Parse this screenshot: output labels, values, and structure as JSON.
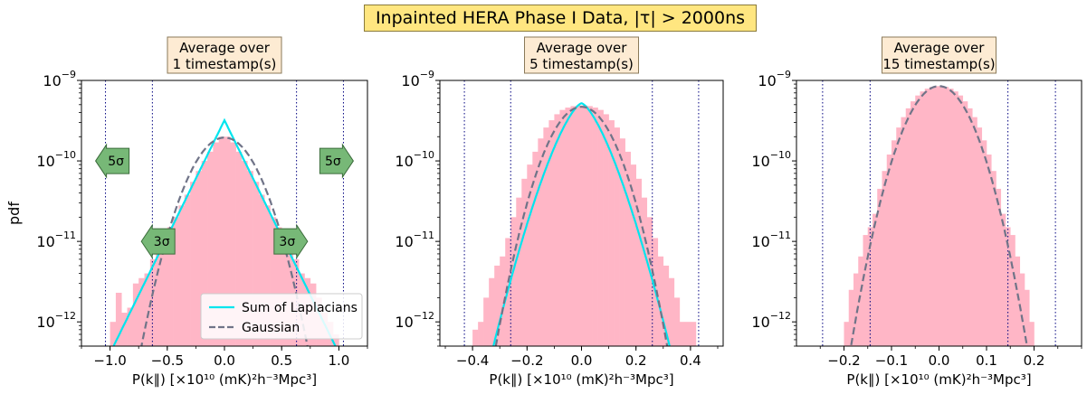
{
  "figure": {
    "title": "Inpainted HERA Phase I Data, |τ| > 2000ns",
    "title_box_color": "#ffe680"
  },
  "colors": {
    "histogram": "#ffb6c6",
    "laplacian": "#00e5ee",
    "gaussian": "#707488",
    "arrow": "#77b877",
    "title_box": "#fdebd3",
    "sigma_line": "#000080"
  },
  "chart_data": [
    {
      "type": "area",
      "title_lines": [
        "Average over",
        "1 timestamp(s)"
      ],
      "xlabel": "P(k∥) [×10¹⁰ (mK)²h⁻³Mpc³]",
      "ylabel": "pdf",
      "yscale": "log",
      "xlim": [
        -1.25,
        1.25
      ],
      "ylim": [
        5e-13,
        1e-09
      ],
      "xticks": [
        -1.0,
        -0.5,
        0.0,
        0.5,
        1.0
      ],
      "xtick_labels": [
        "−1.0",
        "−0.5",
        "0.0",
        "0.5",
        "1.0"
      ],
      "yticks": [
        1e-12,
        1e-11,
        1e-10,
        1e-09
      ],
      "histogram": {
        "bin_edges": [
          -1.0,
          -0.95,
          -0.9,
          -0.85,
          -0.8,
          -0.75,
          -0.7,
          -0.65,
          -0.6,
          -0.55,
          -0.5,
          -0.45,
          -0.4,
          -0.35,
          -0.3,
          -0.25,
          -0.2,
          -0.15,
          -0.1,
          -0.05,
          0.0,
          0.05,
          0.1,
          0.15,
          0.2,
          0.25,
          0.3,
          0.35,
          0.4,
          0.45,
          0.5,
          0.55,
          0.6,
          0.65,
          0.7,
          0.75,
          0.8,
          0.85,
          0.9,
          0.95,
          1.0
        ],
        "values": [
          1e-12,
          2.3e-12,
          1.3e-12,
          1.5e-12,
          3e-12,
          3.5e-12,
          4e-12,
          6e-12,
          8e-12,
          1.1e-11,
          1.5e-11,
          2e-11,
          2.8e-11,
          3.8e-11,
          5.5e-11,
          7.5e-11,
          1e-10,
          1.3e-10,
          1.7e-10,
          2e-10,
          2e-10,
          1.7e-10,
          1.3e-10,
          1e-10,
          7.5e-11,
          5.5e-11,
          3.8e-11,
          2.8e-11,
          2e-11,
          1.5e-11,
          1.1e-11,
          8e-12,
          6e-12,
          4e-12,
          3.5e-12,
          3e-12,
          2e-12,
          1.3e-12,
          1e-12,
          7e-13
        ]
      },
      "laplacian": {
        "peak": 3.2e-10,
        "scale": 0.15
      },
      "gaussian": {
        "peak": 1.95e-10,
        "sigma": 0.21
      },
      "sigma_lines": [
        -1.04,
        -0.63,
        0.63,
        1.04
      ],
      "arrows": [
        {
          "label": "5σ",
          "x": -0.98,
          "y": 1e-10,
          "dir": "left"
        },
        {
          "label": "5σ",
          "x": 0.98,
          "y": 1e-10,
          "dir": "right"
        },
        {
          "label": "3σ",
          "x": -0.58,
          "y": 1e-11,
          "dir": "left"
        },
        {
          "label": "3σ",
          "x": 0.58,
          "y": 1e-11,
          "dir": "right"
        }
      ],
      "legend": {
        "position": "lower-right",
        "entries": [
          {
            "label": "Sum of Laplacians",
            "style": "solid"
          },
          {
            "label": "Gaussian",
            "style": "dashed"
          }
        ]
      }
    },
    {
      "type": "area",
      "title_lines": [
        "Average over",
        "5 timestamp(s)"
      ],
      "xlabel": "P(k∥) [×10¹⁰ (mK)²h⁻³Mpc³]",
      "yscale": "log",
      "xlim": [
        -0.52,
        0.52
      ],
      "ylim": [
        5e-13,
        1e-09
      ],
      "xticks": [
        -0.4,
        -0.2,
        0.0,
        0.2,
        0.4
      ],
      "xtick_labels": [
        "−0.4",
        "−0.2",
        "0.0",
        "0.2",
        "0.4"
      ],
      "yticks": [
        1e-12,
        1e-11,
        1e-10,
        1e-09
      ],
      "histogram": {
        "bin_edges": [
          -0.4,
          -0.38,
          -0.36,
          -0.34,
          -0.32,
          -0.3,
          -0.28,
          -0.26,
          -0.24,
          -0.22,
          -0.2,
          -0.18,
          -0.16,
          -0.14,
          -0.12,
          -0.1,
          -0.08,
          -0.06,
          -0.04,
          -0.02,
          0.0,
          0.02,
          0.04,
          0.06,
          0.08,
          0.1,
          0.12,
          0.14,
          0.16,
          0.18,
          0.2,
          0.22,
          0.24,
          0.26,
          0.28,
          0.3,
          0.32,
          0.34,
          0.36,
          0.38,
          0.4,
          0.42
        ],
        "values": [
          8e-13,
          1e-12,
          2e-12,
          3.5e-12,
          5e-12,
          6.5e-12,
          1.1e-11,
          2e-11,
          3.5e-11,
          6e-11,
          9e-11,
          1.3e-10,
          1.9e-10,
          2.6e-10,
          3.2e-10,
          3.8e-10,
          4.3e-10,
          4.6e-10,
          4.8e-10,
          4.9e-10,
          4.9e-10,
          4.8e-10,
          4.6e-10,
          4.3e-10,
          3.8e-10,
          3.2e-10,
          2.6e-10,
          1.9e-10,
          1.3e-10,
          9e-11,
          6e-11,
          3.5e-11,
          2e-11,
          1.1e-11,
          6.5e-12,
          5e-12,
          3.5e-12,
          2e-12,
          1e-12,
          1e-12,
          1e-12
        ]
      },
      "laplacian": {
        "peak": 5.2e-10,
        "scale": 0.085,
        "shape": 1.45
      },
      "gaussian": {
        "peak": 4.7e-10,
        "sigma": 0.085
      },
      "sigma_lines": [
        -0.43,
        -0.26,
        0.26,
        0.43
      ]
    },
    {
      "type": "area",
      "title_lines": [
        "Average over",
        "15 timestamp(s)"
      ],
      "xlabel": "P(k∥) [×10¹⁰ (mK)²h⁻³Mpc³]",
      "yscale": "log",
      "xlim": [
        -0.3,
        0.3
      ],
      "ylim": [
        5e-13,
        1e-09
      ],
      "xticks": [
        -0.2,
        -0.1,
        0.0,
        0.1,
        0.2
      ],
      "xtick_labels": [
        "−0.2",
        "−0.1",
        "0.0",
        "0.1",
        "0.2"
      ],
      "yticks": [
        1e-12,
        1e-11,
        1e-10,
        1e-09
      ],
      "histogram": {
        "bin_edges": [
          -0.2,
          -0.19,
          -0.18,
          -0.17,
          -0.16,
          -0.15,
          -0.14,
          -0.13,
          -0.12,
          -0.11,
          -0.1,
          -0.09,
          -0.08,
          -0.07,
          -0.06,
          -0.05,
          -0.04,
          -0.03,
          -0.02,
          -0.01,
          0.0,
          0.01,
          0.02,
          0.03,
          0.04,
          0.05,
          0.06,
          0.07,
          0.08,
          0.09,
          0.1,
          0.11,
          0.12,
          0.13,
          0.14,
          0.15,
          0.16,
          0.17,
          0.18,
          0.19,
          0.2
        ],
        "values": [
          1e-12,
          2.5e-12,
          4e-12,
          6.5e-12,
          1.2e-11,
          1.5e-11,
          2.2e-11,
          4.5e-11,
          7.5e-11,
          1.2e-10,
          1.8e-10,
          2.6e-10,
          3.5e-10,
          4.5e-10,
          5.5e-10,
          6.5e-10,
          7.3e-10,
          7.9e-10,
          8.3e-10,
          8.5e-10,
          8.5e-10,
          8.3e-10,
          7.9e-10,
          7.3e-10,
          6.5e-10,
          5.5e-10,
          4.5e-10,
          3.5e-10,
          2.6e-10,
          1.8e-10,
          1.2e-10,
          7.5e-11,
          4.5e-11,
          2.2e-11,
          1.5e-11,
          1.2e-11,
          6.5e-12,
          4e-12,
          2.5e-12,
          1e-12
        ]
      },
      "gaussian": {
        "peak": 8.5e-10,
        "sigma": 0.048
      },
      "sigma_lines": [
        -0.245,
        -0.145,
        0.145,
        0.245
      ]
    }
  ]
}
